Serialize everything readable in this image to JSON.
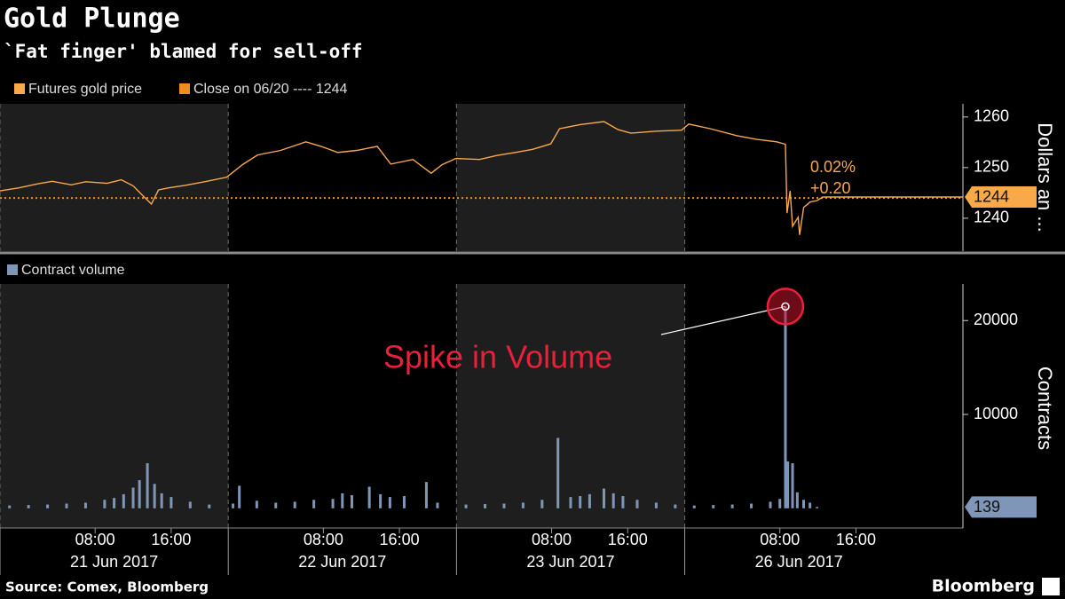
{
  "title": "Gold Plunge",
  "subtitle": "`Fat finger' blamed for sell-off",
  "source": "Source: Comex, Bloomberg",
  "brand": "Bloomberg",
  "chart_data": [
    {
      "type": "line",
      "xlim": [
        "2017-06-20 22:00",
        "2017-06-27 03:15"
      ],
      "ylim": [
        1233.5,
        1262.6
      ],
      "yticks": [
        1240,
        1250,
        1260
      ],
      "y_label": "Dollars an ...",
      "x": [
        "2017-06-20 22:00",
        "2017-06-21 00:00",
        "2017-06-21 02:00",
        "2017-06-21 03:30",
        "2017-06-21 05:30",
        "2017-06-21 07:00",
        "2017-06-21 09:15",
        "2017-06-21 10:45",
        "2017-06-21 12:00",
        "2017-06-21 13:00",
        "2017-06-21 13:55",
        "2017-06-21 14:40",
        "2017-06-21 15:45",
        "2017-06-21 17:30",
        "2017-06-21 19:30",
        "2017-06-21 21:50",
        "2017-06-21 23:30",
        "2017-06-22 01:05",
        "2017-06-22 03:30",
        "2017-06-22 06:10",
        "2017-06-22 07:45",
        "2017-06-22 09:30",
        "2017-06-22 11:30",
        "2017-06-22 13:40",
        "2017-06-22 15:05",
        "2017-06-22 17:25",
        "2017-06-22 19:20",
        "2017-06-22 20:30",
        "2017-06-22 21:55",
        "2017-06-23 00:25",
        "2017-06-23 02:15",
        "2017-06-23 04:10",
        "2017-06-23 06:00",
        "2017-06-23 07:55",
        "2017-06-23 08:50",
        "2017-06-23 11:00",
        "2017-06-23 13:30",
        "2017-06-23 15:00",
        "2017-06-23 16:20",
        "2017-06-23 19:00",
        "2017-06-23 21:40",
        "2017-06-25 22:25",
        "2017-06-26 00:40",
        "2017-06-26 03:30",
        "2017-06-26 05:30",
        "2017-06-26 07:40",
        "2017-06-26 08:35",
        "2017-06-26 08:45",
        "2017-06-26 09:05",
        "2017-06-26 09:20",
        "2017-06-26 09:55",
        "2017-06-26 10:05",
        "2017-06-26 10:30",
        "2017-06-26 11:10",
        "2017-06-26 11:55",
        "2017-06-26 12:30",
        "2017-06-27 03:15"
      ],
      "series": [
        {
          "name": "Futures gold price",
          "color": "#f9a84a",
          "values": [
            1245.4,
            1246.0,
            1246.8,
            1247.3,
            1246.6,
            1247.2,
            1246.9,
            1247.6,
            1246.4,
            1244.5,
            1242.8,
            1245.6,
            1246.0,
            1246.5,
            1247.2,
            1248.1,
            1250.6,
            1252.5,
            1253.4,
            1255.1,
            1254.2,
            1253.0,
            1253.4,
            1254.2,
            1250.7,
            1251.6,
            1248.9,
            1250.6,
            1251.8,
            1251.6,
            1252.4,
            1253.0,
            1253.6,
            1254.7,
            1257.7,
            1258.5,
            1259.1,
            1257.5,
            1256.8,
            1257.2,
            1257.4,
            1258.6,
            1257.7,
            1256.3,
            1255.6,
            1255.1,
            1254.6,
            1241.0,
            1245.4,
            1238.4,
            1240.2,
            1236.7,
            1242.1,
            1243.2,
            1243.5,
            1244.2,
            1244.2
          ]
        }
      ],
      "reference_line": {
        "label": "Close on 06/20 ---- 1244",
        "value": 1244,
        "color": "#f28c1e"
      },
      "last_tag": {
        "value": 1244.2,
        "label": "1244"
      },
      "change": {
        "percent": {
          "value": 0.02,
          "label": "0.02%"
        },
        "absolute": {
          "value": 0.2,
          "label": "+0.20"
        }
      }
    },
    {
      "type": "bar",
      "xlim": [
        "2017-06-20 22:00",
        "2017-06-27 03:15"
      ],
      "ylim": [
        -2100,
        23900
      ],
      "yticks": [
        10000,
        20000
      ],
      "y_label": "Contracts",
      "annotation": "Spike in Volume",
      "xticks": [
        {
          "value": "2017-06-21 08:00",
          "label": "08:00"
        },
        {
          "value": "2017-06-21 16:00",
          "label": "16:00"
        },
        {
          "value": "2017-06-22 08:00",
          "label": "08:00"
        },
        {
          "value": "2017-06-22 16:00",
          "label": "16:00"
        },
        {
          "value": "2017-06-23 08:00",
          "label": "08:00"
        },
        {
          "value": "2017-06-23 16:00",
          "label": "16:00"
        },
        {
          "value": "2017-06-26 08:00",
          "label": "08:00"
        },
        {
          "value": "2017-06-26 16:00",
          "label": "16:00"
        }
      ],
      "date_ticks": [
        {
          "value": "2017-06-21 10:00",
          "label": "21 Jun 2017"
        },
        {
          "value": "2017-06-22 10:00",
          "label": "22 Jun 2017"
        },
        {
          "value": "2017-06-23 10:00",
          "label": "23 Jun 2017"
        },
        {
          "value": "2017-06-26 10:00",
          "label": "26 Jun 2017"
        }
      ],
      "x": [
        "2017-06-20 23:00",
        "2017-06-21 01:00",
        "2017-06-21 03:00",
        "2017-06-21 05:00",
        "2017-06-21 07:00",
        "2017-06-21 09:00",
        "2017-06-21 10:00",
        "2017-06-21 11:00",
        "2017-06-21 12:00",
        "2017-06-21 12:40",
        "2017-06-21 13:30",
        "2017-06-21 14:15",
        "2017-06-21 15:00",
        "2017-06-21 16:00",
        "2017-06-21 18:00",
        "2017-06-21 20:00",
        "2017-06-21 22:30",
        "2017-06-21 23:10",
        "2017-06-22 01:00",
        "2017-06-22 03:00",
        "2017-06-22 05:00",
        "2017-06-22 07:00",
        "2017-06-22 09:00",
        "2017-06-22 10:00",
        "2017-06-22 11:00",
        "2017-06-22 12:50",
        "2017-06-22 14:00",
        "2017-06-22 15:00",
        "2017-06-22 16:30",
        "2017-06-22 18:50",
        "2017-06-22 20:00",
        "2017-06-22 23:00",
        "2017-06-23 01:00",
        "2017-06-23 03:00",
        "2017-06-23 05:00",
        "2017-06-23 07:00",
        "2017-06-23 08:40",
        "2017-06-23 10:00",
        "2017-06-23 11:00",
        "2017-06-23 12:00",
        "2017-06-23 13:30",
        "2017-06-23 14:30",
        "2017-06-23 15:30",
        "2017-06-23 17:00",
        "2017-06-23 19:00",
        "2017-06-23 21:00",
        "2017-06-25 23:00",
        "2017-06-26 01:00",
        "2017-06-26 03:00",
        "2017-06-26 05:00",
        "2017-06-26 07:00",
        "2017-06-26 08:00",
        "2017-06-26 08:35",
        "2017-06-26 08:50",
        "2017-06-26 09:20",
        "2017-06-26 09:50",
        "2017-06-26 10:30",
        "2017-06-26 11:10",
        "2017-06-26 11:55"
      ],
      "series": [
        {
          "name": "Contract volume",
          "color": "#7f96b8",
          "values": [
            300,
            350,
            400,
            500,
            600,
            900,
            1100,
            1500,
            2200,
            3000,
            4800,
            2600,
            1600,
            1200,
            700,
            400,
            500,
            2400,
            800,
            600,
            700,
            900,
            1000,
            1600,
            1400,
            2300,
            1500,
            1200,
            1300,
            2800,
            600,
            400,
            450,
            500,
            600,
            900,
            7500,
            1200,
            1300,
            1500,
            2100,
            1600,
            1300,
            900,
            600,
            400,
            300,
            350,
            400,
            500,
            700,
            1000,
            21500,
            5000,
            4800,
            1700,
            900,
            600,
            139
          ]
        }
      ]
    }
  ]
}
